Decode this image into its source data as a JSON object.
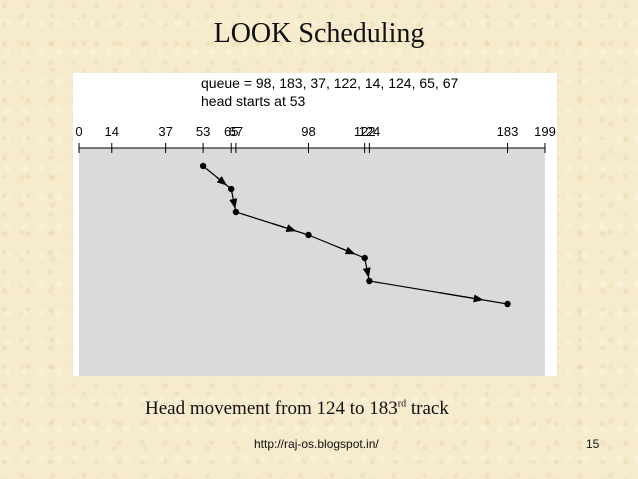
{
  "title": "LOOK Scheduling",
  "figure": {
    "queue_text": "queue = 98, 183, 37, 122, 14, 124, 65, 67",
    "head_text": "head starts at 53"
  },
  "chart_data": {
    "type": "line",
    "axis_ticks": [
      0,
      14,
      37,
      53,
      65,
      67,
      98,
      122,
      124,
      183,
      199
    ],
    "xlim": [
      0,
      199
    ],
    "path": [
      53,
      65,
      67,
      98,
      122,
      124,
      183
    ],
    "grid": false
  },
  "caption": {
    "text": "Head movement from 124 to 183",
    "superscript": "rd",
    "suffix": " track"
  },
  "footer": {
    "url": "http://raj-os.blogspot.in/",
    "slide_number": "15"
  }
}
